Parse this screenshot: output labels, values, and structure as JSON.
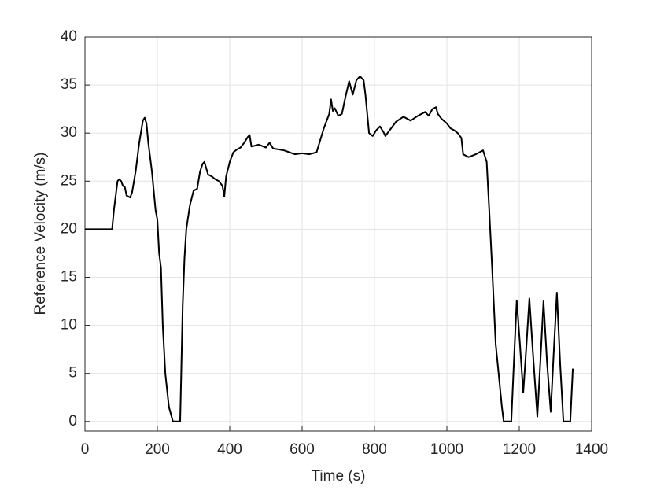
{
  "chart_data": {
    "type": "line",
    "xlabel": "Time (s)",
    "ylabel": "Reference Velocity (m/s)",
    "xlim": [
      0,
      1400
    ],
    "xticks": [
      0,
      200,
      400,
      600,
      800,
      1000,
      1200,
      1400
    ],
    "ylim": [
      -1,
      40
    ],
    "yticks": [
      0,
      5,
      10,
      15,
      20,
      25,
      30,
      35,
      40
    ],
    "grid": true,
    "x": [
      0,
      75,
      80,
      90,
      95,
      100,
      105,
      110,
      115,
      125,
      130,
      140,
      150,
      160,
      165,
      170,
      175,
      185,
      195,
      200,
      205,
      210,
      215,
      222,
      232,
      243,
      263,
      266,
      270,
      275,
      280,
      290,
      300,
      310,
      318,
      325,
      330,
      340,
      350,
      360,
      370,
      380,
      385,
      390,
      400,
      410,
      420,
      430,
      440,
      450,
      455,
      460,
      480,
      500,
      510,
      520,
      550,
      580,
      600,
      620,
      640,
      660,
      670,
      675,
      680,
      685,
      690,
      700,
      710,
      720,
      730,
      740,
      750,
      760,
      770,
      775,
      780,
      785,
      795,
      805,
      815,
      825,
      830,
      840,
      860,
      880,
      900,
      920,
      940,
      950,
      960,
      970,
      975,
      985,
      1000,
      1010,
      1020,
      1030,
      1040,
      1045,
      1060,
      1080,
      1090,
      1100,
      1110,
      1117,
      1125,
      1135,
      1143,
      1152,
      1157,
      1178,
      1185,
      1193,
      1202,
      1211,
      1220,
      1228,
      1238,
      1250,
      1258,
      1267,
      1277,
      1287,
      1295,
      1304,
      1313,
      1322,
      1341,
      1348
    ],
    "series": [
      {
        "color": "#000000",
        "values": [
          20,
          20,
          22,
          25,
          25.2,
          25,
          24.5,
          24.4,
          23.5,
          23.3,
          23.8,
          26,
          29,
          31.3,
          31.6,
          31,
          29,
          26,
          22,
          21,
          17.5,
          16,
          10,
          5,
          1.5,
          0,
          0,
          5,
          12,
          17,
          20,
          22.5,
          24,
          24.2,
          26,
          26.8,
          27,
          25.7,
          25.5,
          25.2,
          25,
          24.5,
          23.4,
          25.5,
          27,
          28,
          28.3,
          28.5,
          29,
          29.6,
          29.8,
          28.6,
          28.8,
          28.5,
          29,
          28.4,
          28.2,
          27.8,
          27.9,
          27.8,
          28,
          30.5,
          31.5,
          32,
          33.5,
          32.3,
          32.6,
          31.8,
          32,
          33.8,
          35.4,
          34,
          35.5,
          35.9,
          35.5,
          34,
          32,
          30,
          29.7,
          30.3,
          30.7,
          30.1,
          29.7,
          30.2,
          31.2,
          31.7,
          31.3,
          31.8,
          32.2,
          31.8,
          32.5,
          32.7,
          32,
          31.5,
          31,
          30.5,
          30.3,
          30,
          29.5,
          27.8,
          27.5,
          27.8,
          28,
          28.2,
          27,
          22,
          16,
          8,
          5,
          1.5,
          0,
          0,
          6,
          12.6,
          8,
          3,
          8,
          12.8,
          7,
          0.5,
          6,
          12.5,
          6,
          1,
          7,
          13.4,
          6,
          0,
          0,
          5.5
        ]
      }
    ]
  }
}
